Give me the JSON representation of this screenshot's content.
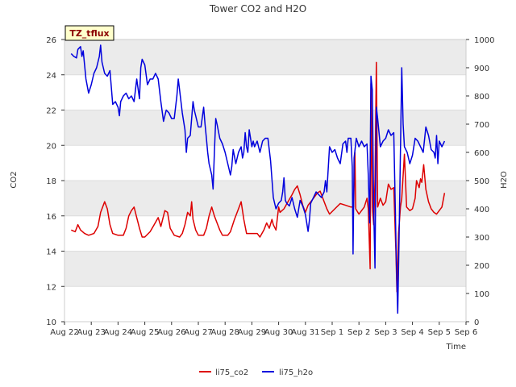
{
  "chart_data": {
    "type": "line",
    "title": "Tower CO2 and H2O",
    "xlabel": "Time",
    "ylabel_left": "CO2",
    "ylabel_right": "H2O",
    "ylim_left": [
      10,
      26
    ],
    "ylim_right": [
      0,
      1000
    ],
    "yticks_left": [
      "10",
      "12",
      "14",
      "16",
      "18",
      "20",
      "22",
      "24",
      "26"
    ],
    "yticks_right": [
      "0",
      "100",
      "200",
      "300",
      "400",
      "500",
      "600",
      "700",
      "800",
      "900",
      "1000"
    ],
    "xlim_days": [
      0,
      15
    ],
    "xtick_labels": [
      "Aug 22",
      "Aug 23",
      "Aug 24",
      "Aug 25",
      "Aug 26",
      "Aug 27",
      "Aug 28",
      "Aug 29",
      "Aug 30",
      "Aug 31",
      "Sep 1",
      "Sep 2",
      "Sep 3",
      "Sep 4",
      "Sep 5",
      "Sep 6"
    ],
    "site_label": "TZ_tflux",
    "legend_position": "bottom-center",
    "grid": true,
    "colors": {
      "li75_co2": "#dd0000",
      "li75_h2o": "#0000dd",
      "band": "#ebebeb"
    },
    "series": [
      {
        "name": "li75_co2",
        "axis": "left",
        "points": [
          [
            0.25,
            15.2
          ],
          [
            0.4,
            15.1
          ],
          [
            0.5,
            15.5
          ],
          [
            0.6,
            15.2
          ],
          [
            0.75,
            15.0
          ],
          [
            0.9,
            14.9
          ],
          [
            1.1,
            15.0
          ],
          [
            1.25,
            15.4
          ],
          [
            1.35,
            16.2
          ],
          [
            1.5,
            16.8
          ],
          [
            1.6,
            16.4
          ],
          [
            1.7,
            15.5
          ],
          [
            1.8,
            15.0
          ],
          [
            2.0,
            14.9
          ],
          [
            2.2,
            14.9
          ],
          [
            2.3,
            15.3
          ],
          [
            2.4,
            16.0
          ],
          [
            2.5,
            16.3
          ],
          [
            2.6,
            16.5
          ],
          [
            2.7,
            15.9
          ],
          [
            2.8,
            15.3
          ],
          [
            2.9,
            14.8
          ],
          [
            3.0,
            14.8
          ],
          [
            3.2,
            15.1
          ],
          [
            3.35,
            15.5
          ],
          [
            3.5,
            15.9
          ],
          [
            3.6,
            15.4
          ],
          [
            3.75,
            16.3
          ],
          [
            3.85,
            16.2
          ],
          [
            3.95,
            15.3
          ],
          [
            4.1,
            14.9
          ],
          [
            4.3,
            14.8
          ],
          [
            4.4,
            15.0
          ],
          [
            4.5,
            15.5
          ],
          [
            4.6,
            16.2
          ],
          [
            4.7,
            16.0
          ],
          [
            4.75,
            16.8
          ],
          [
            4.8,
            15.8
          ],
          [
            4.9,
            15.2
          ],
          [
            5.0,
            14.9
          ],
          [
            5.2,
            14.9
          ],
          [
            5.3,
            15.3
          ],
          [
            5.4,
            16.0
          ],
          [
            5.5,
            16.5
          ],
          [
            5.6,
            16.0
          ],
          [
            5.7,
            15.6
          ],
          [
            5.8,
            15.2
          ],
          [
            5.9,
            14.9
          ],
          [
            6.1,
            14.9
          ],
          [
            6.2,
            15.1
          ],
          [
            6.35,
            15.8
          ],
          [
            6.5,
            16.4
          ],
          [
            6.6,
            16.8
          ],
          [
            6.7,
            15.8
          ],
          [
            6.8,
            15.0
          ],
          [
            7.0,
            15.0
          ],
          [
            7.2,
            15.0
          ],
          [
            7.3,
            14.8
          ],
          [
            7.45,
            15.2
          ],
          [
            7.55,
            15.6
          ],
          [
            7.65,
            15.3
          ],
          [
            7.75,
            15.8
          ],
          [
            7.8,
            15.5
          ],
          [
            7.9,
            15.2
          ],
          [
            8.0,
            16.5
          ],
          [
            8.05,
            16.2
          ],
          [
            8.2,
            16.4
          ],
          [
            8.35,
            16.8
          ],
          [
            8.5,
            17.2
          ],
          [
            8.6,
            17.5
          ],
          [
            8.7,
            17.7
          ],
          [
            8.8,
            17.2
          ],
          [
            8.9,
            16.6
          ],
          [
            9.0,
            16.2
          ],
          [
            9.1,
            16.6
          ],
          [
            9.3,
            17.0
          ],
          [
            9.45,
            17.3
          ],
          [
            9.55,
            17.4
          ],
          [
            9.65,
            17.0
          ],
          [
            9.8,
            16.4
          ],
          [
            9.9,
            16.1
          ],
          [
            10.1,
            16.4
          ],
          [
            10.3,
            16.7
          ],
          [
            10.5,
            16.6
          ],
          [
            10.7,
            16.5
          ],
          [
            10.8,
            16.5
          ],
          [
            10.85,
            19.6
          ],
          [
            10.88,
            16.4
          ],
          [
            11.0,
            16.1
          ],
          [
            11.2,
            16.5
          ],
          [
            11.3,
            17.0
          ],
          [
            11.35,
            16.4
          ],
          [
            11.42,
            13.0
          ],
          [
            11.45,
            23.5
          ],
          [
            11.5,
            16.5
          ],
          [
            11.55,
            15.5
          ],
          [
            11.6,
            18.0
          ],
          [
            11.65,
            24.7
          ],
          [
            11.7,
            16.5
          ],
          [
            11.8,
            17.0
          ],
          [
            11.9,
            16.6
          ],
          [
            12.0,
            16.8
          ],
          [
            12.1,
            17.8
          ],
          [
            12.2,
            17.5
          ],
          [
            12.3,
            17.6
          ],
          [
            12.38,
            14.0
          ],
          [
            12.42,
            11.7
          ],
          [
            12.48,
            15.0
          ],
          [
            12.55,
            16.5
          ],
          [
            12.6,
            17.0
          ],
          [
            12.7,
            19.5
          ],
          [
            12.78,
            16.5
          ],
          [
            12.9,
            16.3
          ],
          [
            13.0,
            16.4
          ],
          [
            13.1,
            17.0
          ],
          [
            13.15,
            18.0
          ],
          [
            13.25,
            17.6
          ],
          [
            13.3,
            18.1
          ],
          [
            13.35,
            17.9
          ],
          [
            13.42,
            18.9
          ],
          [
            13.5,
            17.5
          ],
          [
            13.6,
            16.8
          ],
          [
            13.7,
            16.4
          ],
          [
            13.8,
            16.2
          ],
          [
            13.9,
            16.1
          ],
          [
            14.0,
            16.3
          ],
          [
            14.1,
            16.5
          ],
          [
            14.2,
            17.3
          ]
        ]
      },
      {
        "name": "li75_h2o",
        "axis": "right",
        "points": [
          [
            0.25,
            950
          ],
          [
            0.35,
            940
          ],
          [
            0.45,
            935
          ],
          [
            0.5,
            965
          ],
          [
            0.6,
            975
          ],
          [
            0.65,
            940
          ],
          [
            0.7,
            960
          ],
          [
            0.8,
            860
          ],
          [
            0.9,
            810
          ],
          [
            1.0,
            840
          ],
          [
            1.1,
            880
          ],
          [
            1.2,
            900
          ],
          [
            1.3,
            940
          ],
          [
            1.35,
            980
          ],
          [
            1.4,
            920
          ],
          [
            1.5,
            880
          ],
          [
            1.6,
            870
          ],
          [
            1.7,
            890
          ],
          [
            1.8,
            770
          ],
          [
            1.9,
            780
          ],
          [
            2.0,
            760
          ],
          [
            2.05,
            730
          ],
          [
            2.1,
            780
          ],
          [
            2.2,
            800
          ],
          [
            2.3,
            810
          ],
          [
            2.4,
            790
          ],
          [
            2.5,
            800
          ],
          [
            2.6,
            780
          ],
          [
            2.7,
            860
          ],
          [
            2.8,
            790
          ],
          [
            2.85,
            900
          ],
          [
            2.9,
            930
          ],
          [
            3.0,
            910
          ],
          [
            3.1,
            840
          ],
          [
            3.2,
            860
          ],
          [
            3.3,
            860
          ],
          [
            3.4,
            880
          ],
          [
            3.5,
            860
          ],
          [
            3.6,
            780
          ],
          [
            3.7,
            710
          ],
          [
            3.8,
            750
          ],
          [
            3.9,
            740
          ],
          [
            4.0,
            720
          ],
          [
            4.1,
            720
          ],
          [
            4.2,
            800
          ],
          [
            4.25,
            860
          ],
          [
            4.3,
            820
          ],
          [
            4.4,
            740
          ],
          [
            4.5,
            680
          ],
          [
            4.55,
            600
          ],
          [
            4.6,
            650
          ],
          [
            4.7,
            660
          ],
          [
            4.8,
            780
          ],
          [
            4.85,
            750
          ],
          [
            4.9,
            730
          ],
          [
            5.0,
            690
          ],
          [
            5.1,
            690
          ],
          [
            5.2,
            760
          ],
          [
            5.25,
            700
          ],
          [
            5.3,
            650
          ],
          [
            5.35,
            600
          ],
          [
            5.4,
            560
          ],
          [
            5.5,
            520
          ],
          [
            5.55,
            470
          ],
          [
            5.6,
            600
          ],
          [
            5.65,
            720
          ],
          [
            5.7,
            700
          ],
          [
            5.8,
            650
          ],
          [
            5.9,
            630
          ],
          [
            6.0,
            600
          ],
          [
            6.1,
            560
          ],
          [
            6.2,
            520
          ],
          [
            6.25,
            550
          ],
          [
            6.3,
            610
          ],
          [
            6.4,
            560
          ],
          [
            6.5,
            600
          ],
          [
            6.6,
            620
          ],
          [
            6.65,
            580
          ],
          [
            6.7,
            600
          ],
          [
            6.75,
            670
          ],
          [
            6.8,
            620
          ],
          [
            6.85,
            600
          ],
          [
            6.9,
            680
          ],
          [
            7.0,
            620
          ],
          [
            7.05,
            640
          ],
          [
            7.1,
            620
          ],
          [
            7.2,
            640
          ],
          [
            7.3,
            600
          ],
          [
            7.4,
            640
          ],
          [
            7.5,
            650
          ],
          [
            7.6,
            650
          ],
          [
            7.7,
            570
          ],
          [
            7.8,
            440
          ],
          [
            7.85,
            420
          ],
          [
            7.9,
            400
          ],
          [
            8.0,
            420
          ],
          [
            8.1,
            430
          ],
          [
            8.15,
            460
          ],
          [
            8.2,
            510
          ],
          [
            8.25,
            430
          ],
          [
            8.3,
            420
          ],
          [
            8.4,
            410
          ],
          [
            8.5,
            440
          ],
          [
            8.6,
            400
          ],
          [
            8.7,
            370
          ],
          [
            8.8,
            430
          ],
          [
            8.9,
            410
          ],
          [
            9.0,
            380
          ],
          [
            9.1,
            320
          ],
          [
            9.15,
            360
          ],
          [
            9.2,
            420
          ],
          [
            9.3,
            440
          ],
          [
            9.4,
            460
          ],
          [
            9.5,
            450
          ],
          [
            9.6,
            440
          ],
          [
            9.7,
            460
          ],
          [
            9.75,
            500
          ],
          [
            9.8,
            460
          ],
          [
            9.9,
            620
          ],
          [
            10.0,
            600
          ],
          [
            10.1,
            610
          ],
          [
            10.2,
            580
          ],
          [
            10.3,
            560
          ],
          [
            10.4,
            630
          ],
          [
            10.5,
            640
          ],
          [
            10.55,
            600
          ],
          [
            10.6,
            650
          ],
          [
            10.7,
            650
          ],
          [
            10.75,
            550
          ],
          [
            10.78,
            240
          ],
          [
            10.82,
            580
          ],
          [
            10.9,
            650
          ],
          [
            11.0,
            620
          ],
          [
            11.1,
            640
          ],
          [
            11.2,
            620
          ],
          [
            11.3,
            630
          ],
          [
            11.35,
            520
          ],
          [
            11.4,
            350
          ],
          [
            11.45,
            870
          ],
          [
            11.5,
            820
          ],
          [
            11.55,
            400
          ],
          [
            11.6,
            190
          ],
          [
            11.65,
            760
          ],
          [
            11.7,
            720
          ],
          [
            11.8,
            620
          ],
          [
            11.9,
            640
          ],
          [
            12.0,
            650
          ],
          [
            12.1,
            680
          ],
          [
            12.2,
            660
          ],
          [
            12.3,
            670
          ],
          [
            12.4,
            200
          ],
          [
            12.45,
            30
          ],
          [
            12.5,
            300
          ],
          [
            12.6,
            900
          ],
          [
            12.65,
            700
          ],
          [
            12.7,
            620
          ],
          [
            12.8,
            600
          ],
          [
            12.9,
            560
          ],
          [
            13.0,
            590
          ],
          [
            13.1,
            650
          ],
          [
            13.2,
            640
          ],
          [
            13.3,
            620
          ],
          [
            13.4,
            600
          ],
          [
            13.5,
            690
          ],
          [
            13.6,
            660
          ],
          [
            13.7,
            610
          ],
          [
            13.8,
            600
          ],
          [
            13.85,
            580
          ],
          [
            13.9,
            660
          ],
          [
            13.95,
            560
          ],
          [
            14.0,
            640
          ],
          [
            14.1,
            620
          ],
          [
            14.2,
            640
          ]
        ]
      }
    ]
  }
}
